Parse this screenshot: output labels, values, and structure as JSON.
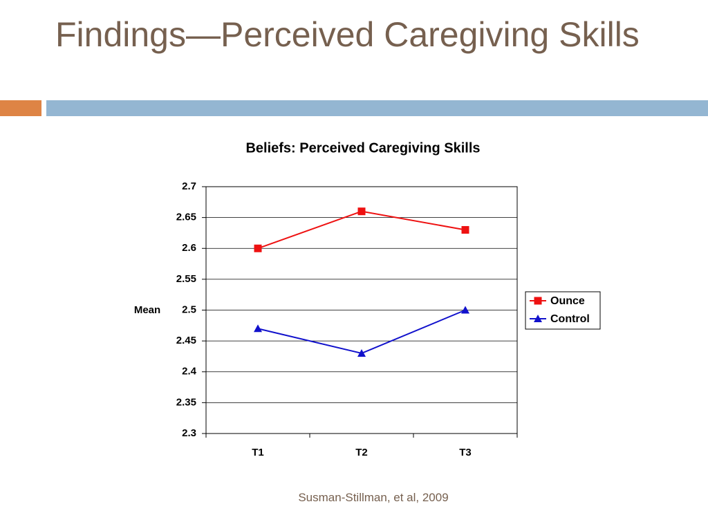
{
  "slide": {
    "title": "Findings—Perceived Caregiving Skills",
    "citation": "Susman-Stillman, et al, 2009"
  },
  "chart_data": {
    "type": "line",
    "title": "Beliefs: Perceived Caregiving Skills",
    "ylabel": "Mean",
    "categories": [
      "T1",
      "T2",
      "T3"
    ],
    "series": [
      {
        "name": "Ounce",
        "color": "#ee1111",
        "marker": "square",
        "values": [
          2.6,
          2.66,
          2.63
        ]
      },
      {
        "name": "Control",
        "color": "#1111cc",
        "marker": "triangle",
        "values": [
          2.47,
          2.43,
          2.5
        ]
      }
    ],
    "ylim": [
      2.3,
      2.7
    ],
    "yticks": [
      2.3,
      2.35,
      2.4,
      2.45,
      2.5,
      2.55,
      2.6,
      2.65,
      2.7
    ],
    "grid": true,
    "legend": "right"
  }
}
